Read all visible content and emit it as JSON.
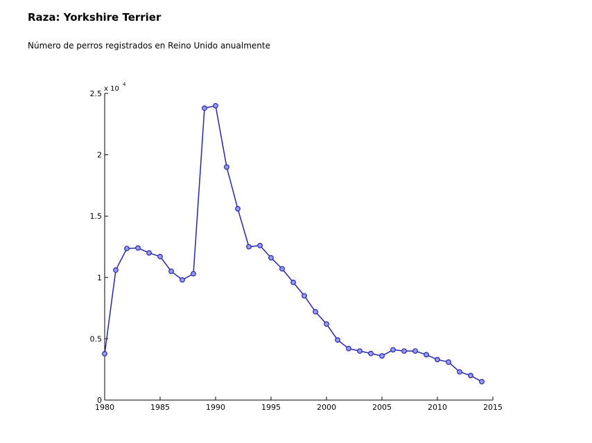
{
  "chart_data": {
    "type": "line",
    "title": "Raza: Yorkshire Terrier",
    "subtitle": "Número de perros registrados en Reino Unido anualmente",
    "axis_multiplier": {
      "base": "x 10",
      "exponent": "4"
    },
    "x": [
      1980,
      1981,
      1982,
      1983,
      1984,
      1985,
      1986,
      1987,
      1988,
      1989,
      1990,
      1991,
      1992,
      1993,
      1994,
      1995,
      1996,
      1997,
      1998,
      1999,
      2000,
      2001,
      2002,
      2003,
      2004,
      2005,
      2006,
      2007,
      2008,
      2009,
      2010,
      2011,
      2012,
      2013,
      2014
    ],
    "series": [
      {
        "color": "#2424b0",
        "values": [
          0.378,
          1.06,
          1.236,
          1.24,
          1.2,
          1.17,
          1.05,
          0.98,
          1.03,
          2.38,
          2.4,
          1.9,
          1.56,
          1.25,
          1.26,
          1.16,
          1.07,
          0.96,
          0.85,
          0.72,
          0.62,
          0.49,
          0.42,
          0.4,
          0.38,
          0.36,
          0.41,
          0.4,
          0.4,
          0.37,
          0.33,
          0.31,
          0.23,
          0.2,
          0.15
        ]
      }
    ],
    "xlim": [
      1980,
      2015
    ],
    "xticks": [
      1980,
      1985,
      1990,
      1995,
      2000,
      2005,
      2010,
      2015
    ],
    "ylim": [
      0,
      2.5
    ],
    "yticks": [
      0,
      0.5,
      1,
      1.5,
      2,
      2.5
    ],
    "grid": false
  }
}
